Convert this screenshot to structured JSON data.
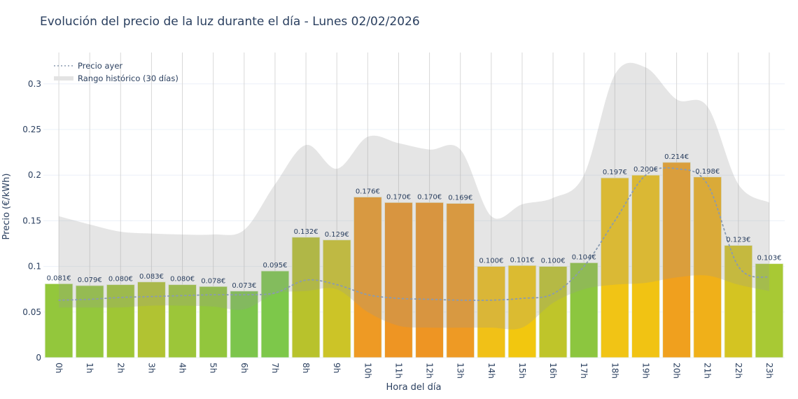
{
  "chart_data": {
    "type": "bar",
    "title": "Evolución del precio de la luz durante el día - Lunes 02/02/2026",
    "xlabel": "Hora del día",
    "ylabel": "Precio (€/kWh)",
    "ylim": [
      0,
      0.335
    ],
    "yticks": [
      0,
      0.05,
      0.1,
      0.15,
      0.2,
      0.25,
      0.3
    ],
    "ytick_labels": [
      "0",
      "0.05",
      "0.1",
      "0.15",
      "0.2",
      "0.25",
      "0.3"
    ],
    "grid": true,
    "legend_position": "top-left",
    "categories": [
      "0h",
      "1h",
      "2h",
      "3h",
      "4h",
      "5h",
      "6h",
      "7h",
      "8h",
      "9h",
      "10h",
      "11h",
      "12h",
      "13h",
      "14h",
      "15h",
      "16h",
      "17h",
      "18h",
      "19h",
      "20h",
      "21h",
      "22h",
      "23h"
    ],
    "values": [
      0.081,
      0.079,
      0.08,
      0.083,
      0.08,
      0.078,
      0.073,
      0.095,
      0.132,
      0.129,
      0.176,
      0.17,
      0.17,
      0.169,
      0.1,
      0.101,
      0.1,
      0.104,
      0.197,
      0.2,
      0.214,
      0.198,
      0.123,
      0.103
    ],
    "labels": [
      "0.081€",
      "0.079€",
      "0.080€",
      "0.083€",
      "0.080€",
      "0.078€",
      "0.073€",
      "0.095€",
      "0.132€",
      "0.129€",
      "0.176€",
      "0.170€",
      "0.170€",
      "0.169€",
      "0.100€",
      "0.101€",
      "0.100€",
      "0.104€",
      "0.197€",
      "0.200€",
      "0.214€",
      "0.198€",
      "0.123€",
      "0.103€"
    ],
    "bar_colors": [
      "#93c73c",
      "#94c73c",
      "#9fc635",
      "#b1c332",
      "#9cc639",
      "#92c63d",
      "#7cc54c",
      "#7dc84a",
      "#b8c22c",
      "#ccc427",
      "#ee9a24",
      "#ee9523",
      "#ee9523",
      "#ee9a24",
      "#f1c117",
      "#f2c70f",
      "#bfc52a",
      "#8cc63f",
      "#f1c415",
      "#f1c313",
      "#f0a01e",
      "#f0b019",
      "#d4c422",
      "#a8c934"
    ],
    "series": [
      {
        "name": "Precio ayer",
        "type": "line",
        "style": "dotted",
        "color": "#8a9bb0",
        "values": [
          0.063,
          0.064,
          0.066,
          0.067,
          0.068,
          0.069,
          0.069,
          0.071,
          0.085,
          0.08,
          0.069,
          0.065,
          0.064,
          0.063,
          0.063,
          0.065,
          0.07,
          0.1,
          0.15,
          0.2,
          0.207,
          0.19,
          0.1,
          0.088
        ]
      },
      {
        "name": "Rango histórico (30 días)",
        "type": "band",
        "color": "#999999",
        "high": [
          0.155,
          0.146,
          0.138,
          0.136,
          0.135,
          0.135,
          0.14,
          0.19,
          0.233,
          0.207,
          0.242,
          0.235,
          0.228,
          0.228,
          0.155,
          0.168,
          0.175,
          0.2,
          0.31,
          0.318,
          0.283,
          0.275,
          0.19,
          0.17
        ],
        "low": [
          0.055,
          0.055,
          0.055,
          0.057,
          0.057,
          0.056,
          0.053,
          0.07,
          0.073,
          0.075,
          0.05,
          0.035,
          0.033,
          0.033,
          0.033,
          0.033,
          0.06,
          0.075,
          0.08,
          0.082,
          0.088,
          0.09,
          0.08,
          0.073
        ]
      }
    ]
  }
}
